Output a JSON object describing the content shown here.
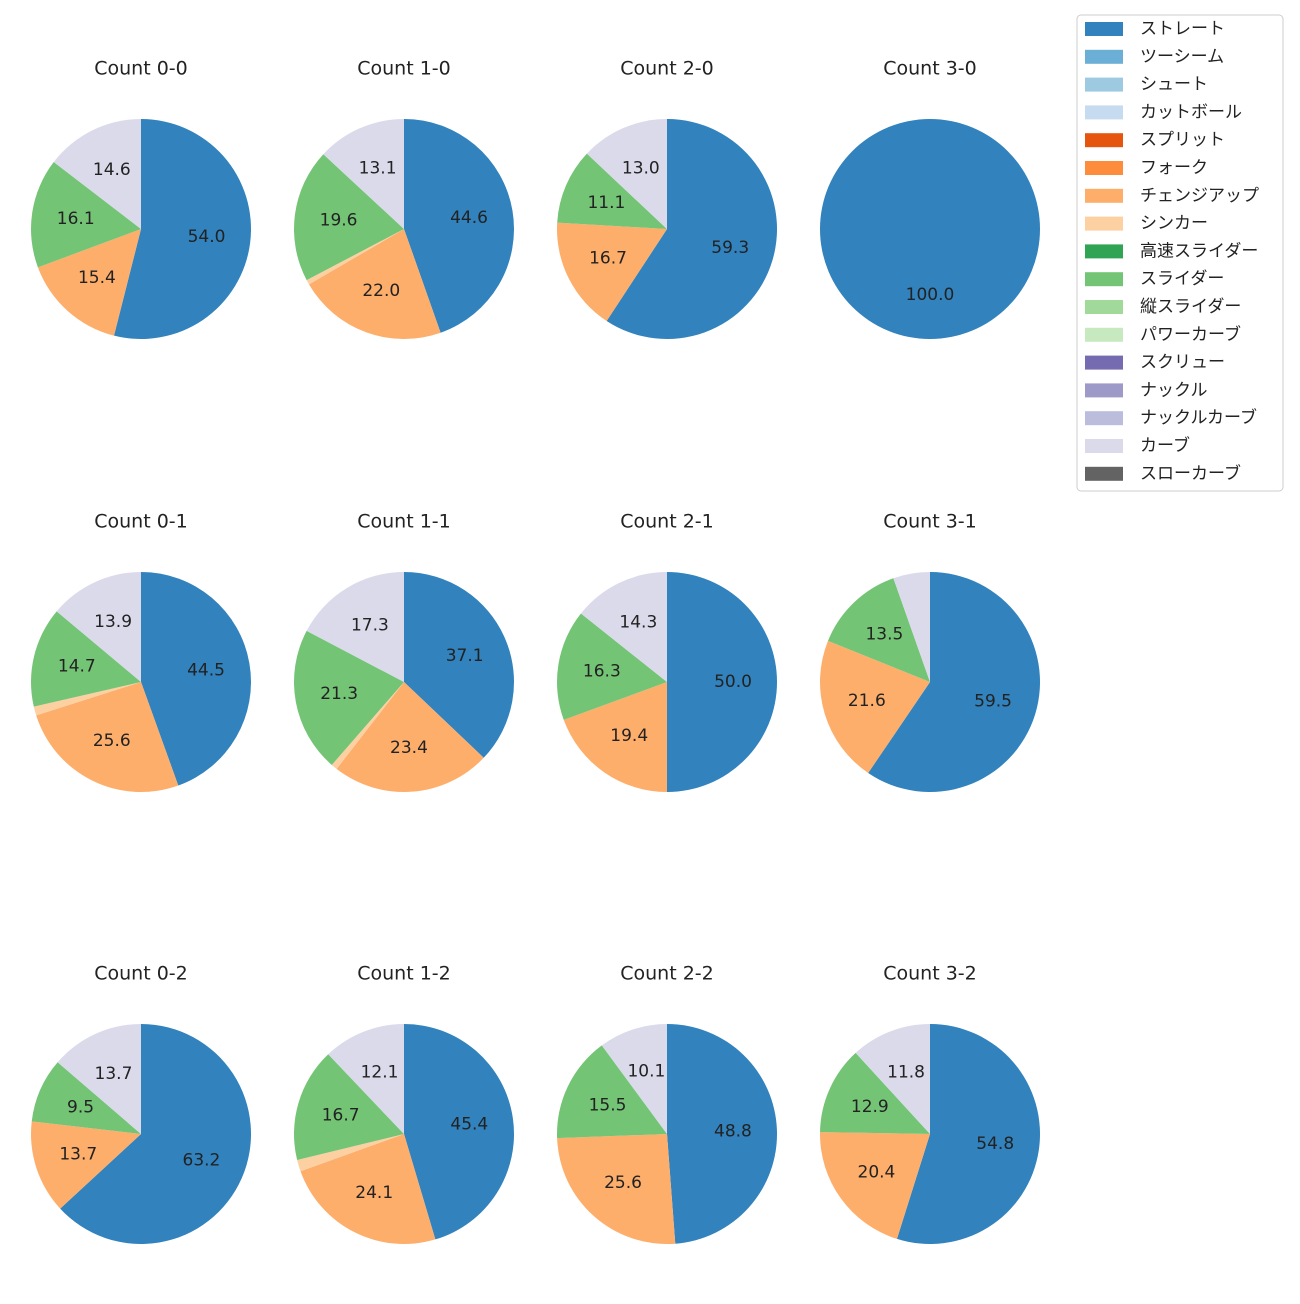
{
  "legend": {
    "labels": [
      "ストレート",
      "ツーシーム",
      "シュート",
      "カットボール",
      "スプリット",
      "フォーク",
      "チェンジアップ",
      "シンカー",
      "高速スライダー",
      "スライダー",
      "縦スライダー",
      "パワーカーブ",
      "スクリュー",
      "ナックル",
      "ナックルカーブ",
      "カーブ",
      "スローカーブ"
    ],
    "colors": [
      "#3182bd",
      "#6baed6",
      "#9ecae1",
      "#c6dbef",
      "#e6550d",
      "#fd8d3c",
      "#fdae6b",
      "#fdd0a2",
      "#31a354",
      "#74c476",
      "#a1d99b",
      "#c7e9c0",
      "#756bb1",
      "#9e9ac8",
      "#bcbddc",
      "#dadaeb",
      "#636363"
    ]
  },
  "chart_data": [
    {
      "type": "pie",
      "title": "Count 0-0",
      "categories": [
        "ストレート",
        "チェンジアップ",
        "スライダー",
        "カーブ"
      ],
      "values": [
        54.0,
        15.4,
        16.1,
        14.6
      ],
      "value_labels": [
        "54.0",
        "15.4",
        "16.1",
        "14.6"
      ]
    },
    {
      "type": "pie",
      "title": "Count 1-0",
      "categories": [
        "ストレート",
        "チェンジアップ",
        "シンカー",
        "スライダー",
        "カーブ"
      ],
      "values": [
        44.6,
        22.0,
        0.7,
        19.6,
        13.1
      ],
      "value_labels": [
        "44.6",
        "22.0",
        null,
        "19.6",
        "13.1"
      ]
    },
    {
      "type": "pie",
      "title": "Count 2-0",
      "categories": [
        "ストレート",
        "チェンジアップ",
        "スライダー",
        "カーブ"
      ],
      "values": [
        59.3,
        16.7,
        11.1,
        13.0
      ],
      "value_labels": [
        "59.3",
        "16.7",
        "11.1",
        "13.0"
      ]
    },
    {
      "type": "pie",
      "title": "Count 3-0",
      "categories": [
        "ストレート"
      ],
      "values": [
        100.0
      ],
      "value_labels": [
        "100.0"
      ]
    },
    {
      "type": "pie",
      "title": "Count 0-1",
      "categories": [
        "ストレート",
        "チェンジアップ",
        "シンカー",
        "スライダー",
        "カーブ"
      ],
      "values": [
        44.5,
        25.6,
        1.3,
        14.7,
        13.9
      ],
      "value_labels": [
        "44.5",
        "25.6",
        null,
        "14.7",
        "13.9"
      ]
    },
    {
      "type": "pie",
      "title": "Count 1-1",
      "categories": [
        "ストレート",
        "チェンジアップ",
        "シンカー",
        "スライダー",
        "カーブ"
      ],
      "values": [
        37.1,
        23.4,
        0.9,
        21.3,
        17.3
      ],
      "value_labels": [
        "37.1",
        "23.4",
        null,
        "21.3",
        "17.3"
      ]
    },
    {
      "type": "pie",
      "title": "Count 2-1",
      "categories": [
        "ストレート",
        "チェンジアップ",
        "スライダー",
        "カーブ"
      ],
      "values": [
        50.0,
        19.4,
        16.3,
        14.3
      ],
      "value_labels": [
        "50.0",
        "19.4",
        "16.3",
        "14.3"
      ]
    },
    {
      "type": "pie",
      "title": "Count 3-1",
      "categories": [
        "ストレート",
        "チェンジアップ",
        "スライダー",
        "カーブ"
      ],
      "values": [
        59.5,
        21.6,
        13.5,
        5.4
      ],
      "value_labels": [
        "59.5",
        "21.6",
        "13.5",
        null
      ]
    },
    {
      "type": "pie",
      "title": "Count 0-2",
      "categories": [
        "ストレート",
        "チェンジアップ",
        "スライダー",
        "カーブ"
      ],
      "values": [
        63.2,
        13.7,
        9.5,
        13.7
      ],
      "value_labels": [
        "63.2",
        "13.7",
        "9.5",
        "13.7"
      ]
    },
    {
      "type": "pie",
      "title": "Count 1-2",
      "categories": [
        "ストレート",
        "チェンジアップ",
        "シンカー",
        "スライダー",
        "カーブ"
      ],
      "values": [
        45.4,
        24.1,
        1.7,
        16.7,
        12.1
      ],
      "value_labels": [
        "45.4",
        "24.1",
        null,
        "16.7",
        "12.1"
      ]
    },
    {
      "type": "pie",
      "title": "Count 2-2",
      "categories": [
        "ストレート",
        "チェンジアップ",
        "スライダー",
        "カーブ"
      ],
      "values": [
        48.8,
        25.6,
        15.5,
        10.1
      ],
      "value_labels": [
        "48.8",
        "25.6",
        "15.5",
        "10.1"
      ]
    },
    {
      "type": "pie",
      "title": "Count 3-2",
      "categories": [
        "ストレート",
        "チェンジアップ",
        "スライダー",
        "カーブ"
      ],
      "values": [
        54.8,
        20.4,
        12.9,
        11.8
      ],
      "value_labels": [
        "54.8",
        "20.4",
        "12.9",
        "11.8"
      ]
    }
  ]
}
